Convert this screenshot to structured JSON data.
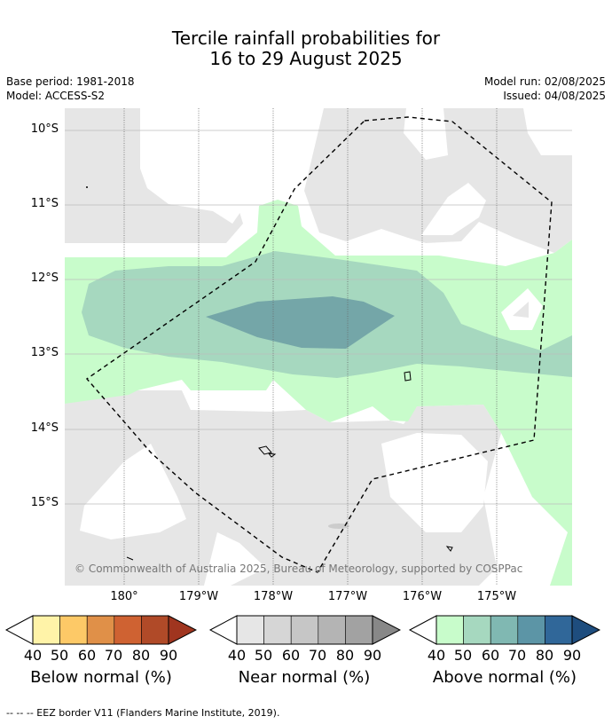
{
  "header": {
    "title_line1": "Tercile rainfall probabilities for",
    "title_line2": "16 to 29 August 2025",
    "base_period": "Base period: 1981-2018",
    "model": "Model: ACCESS-S2",
    "model_run": "Model run: 02/08/2025",
    "issued": "Issued: 04/08/2025"
  },
  "map": {
    "lat_labels": [
      "10°S",
      "11°S",
      "12°S",
      "13°S",
      "14°S",
      "15°S"
    ],
    "lon_labels": [
      "180°",
      "179°W",
      "178°W",
      "177°W",
      "176°W",
      "175°W"
    ],
    "copyright": "© Commonwealth of Australia 2025, Bureau of Meteorology, supported by COSPPac",
    "colors": {
      "near_normal_40": "#e6e6e6",
      "above_40": "#c8fccb",
      "above_50": "#a6d8bf",
      "above_60": "#74a6a8"
    }
  },
  "legend": {
    "ticks": [
      "40",
      "50",
      "60",
      "70",
      "80",
      "90"
    ],
    "below": {
      "title": "Below normal (%)",
      "colors": [
        "#fff3a8",
        "#fdc967",
        "#e09048",
        "#cf6232",
        "#b04a28",
        "#a0351f"
      ]
    },
    "near": {
      "title": "Near normal (%)",
      "colors": [
        "#e6e6e6",
        "#d6d6d6",
        "#c6c6c6",
        "#b4b4b4",
        "#a2a2a2",
        "#888888"
      ]
    },
    "above": {
      "title": "Above normal (%)",
      "colors": [
        "#c8fccb",
        "#a6d8bf",
        "#80b8b2",
        "#5c95a6",
        "#306799",
        "#1e4d7e"
      ]
    }
  },
  "footnote": "--  --  -- EEZ border V11 (Flanders Marine Institute, 2019)."
}
